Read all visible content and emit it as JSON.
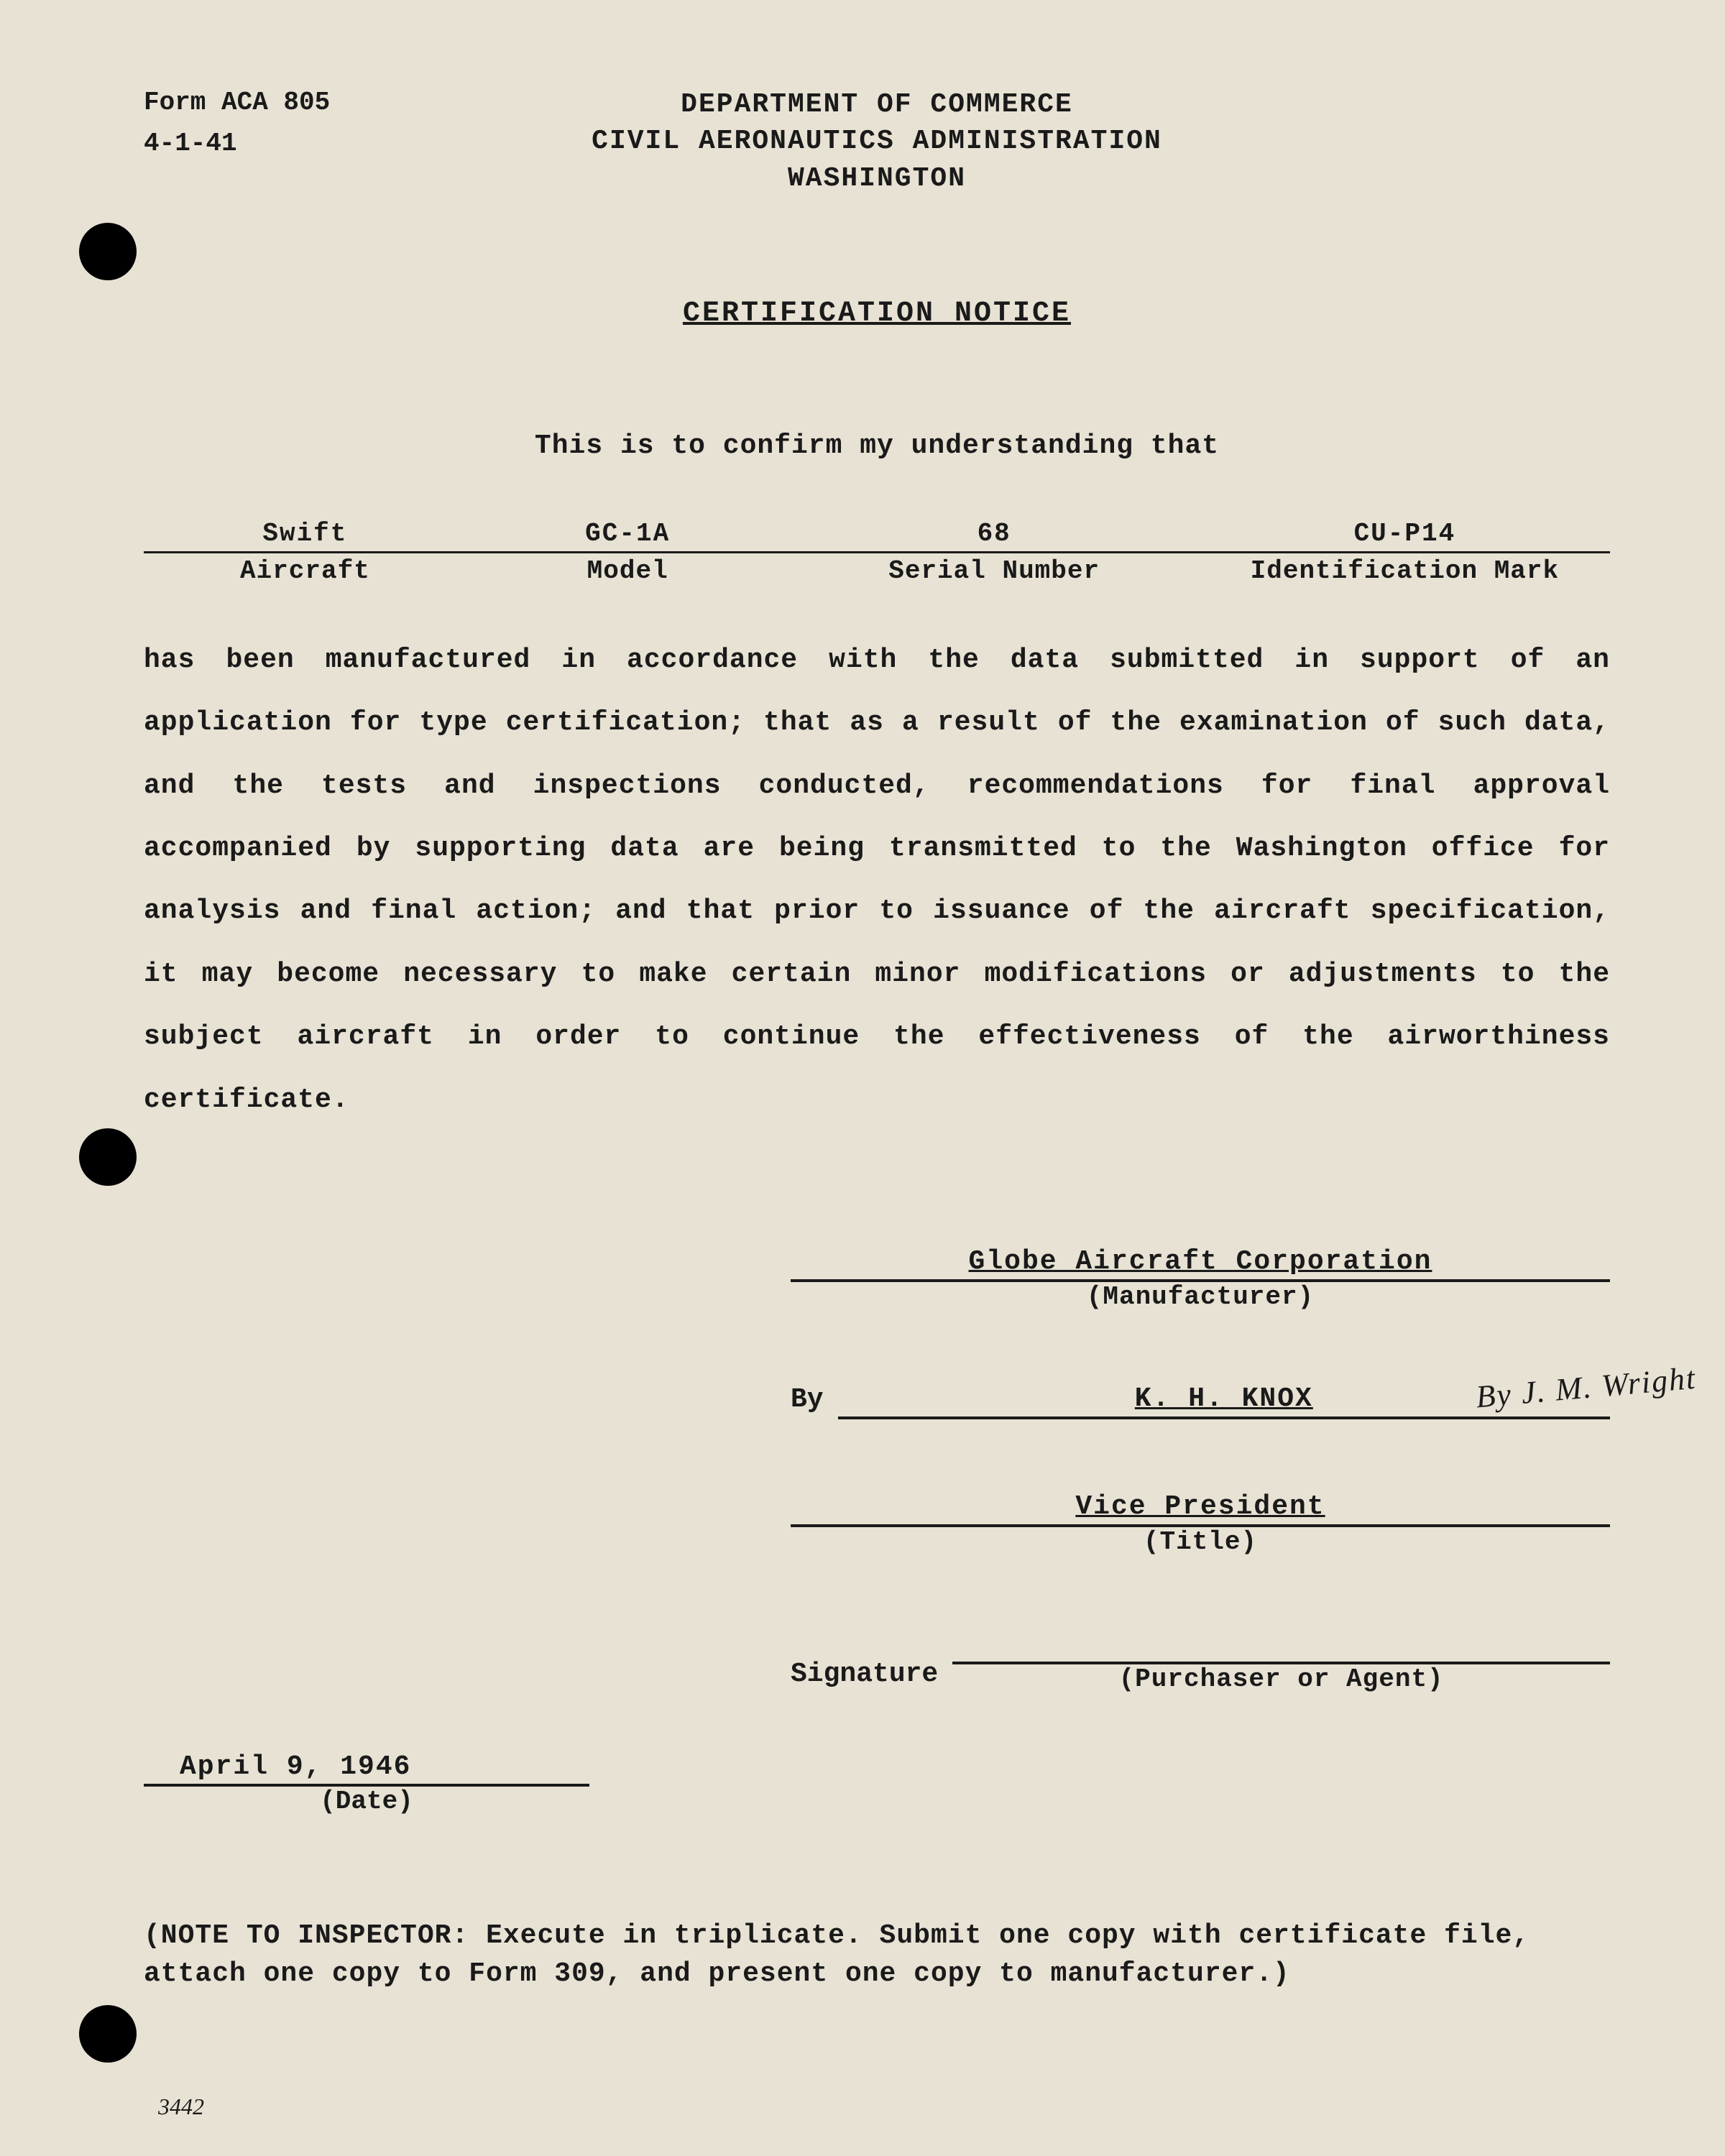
{
  "form": {
    "number": "Form ACA 805",
    "date_code": "4-1-41"
  },
  "header": {
    "dept": "DEPARTMENT OF COMMERCE",
    "admin": "CIVIL AERONAUTICS ADMINISTRATION",
    "city": "WASHINGTON"
  },
  "title": "CERTIFICATION NOTICE",
  "intro": "This is to confirm my understanding that",
  "fields": {
    "aircraft": {
      "label": "Aircraft",
      "value": "Swift"
    },
    "model": {
      "label": "Model",
      "value": "GC-1A"
    },
    "serial": {
      "label": "Serial Number",
      "value": "68"
    },
    "ident": {
      "label": "Identification Mark",
      "value": "CU-P14"
    }
  },
  "body": "has been manufactured in accordance with the data submitted in support of an application for type certification; that as a result of the examination of such data, and the tests and inspections conducted, recommendations for final approval accompanied by supporting data are being transmitted to the Washington office for analysis and final action; and that prior to issuance of the aircraft specification, it may become necessary to make certain minor modifications or adjustments to the subject aircraft in order to continue the effectiveness of the airworthiness certificate.",
  "signatures": {
    "manufacturer": {
      "value": "Globe Aircraft Corporation",
      "caption": "(Manufacturer)"
    },
    "by": {
      "label": "By",
      "value": "K. H. KNOX",
      "handwritten": "By J. M. Wright"
    },
    "title_sig": {
      "value": "Vice President",
      "caption": "(Title)"
    },
    "purchaser": {
      "label": "Signature",
      "value": "",
      "caption": "(Purchaser or Agent)"
    }
  },
  "date": {
    "value": "April 9, 1946",
    "caption": "(Date)"
  },
  "note": "(NOTE TO INSPECTOR: Execute in triplicate. Submit one copy with certificate file, attach one copy to Form 309, and present one copy to manufacturer.)",
  "page_number": "3442",
  "colors": {
    "paper": "#e8e2d4",
    "ink": "#1a1a1a",
    "hole": "#000000"
  },
  "typography": {
    "body_fontsize_pt": 38,
    "font_family": "Courier New",
    "weight": "bold"
  }
}
